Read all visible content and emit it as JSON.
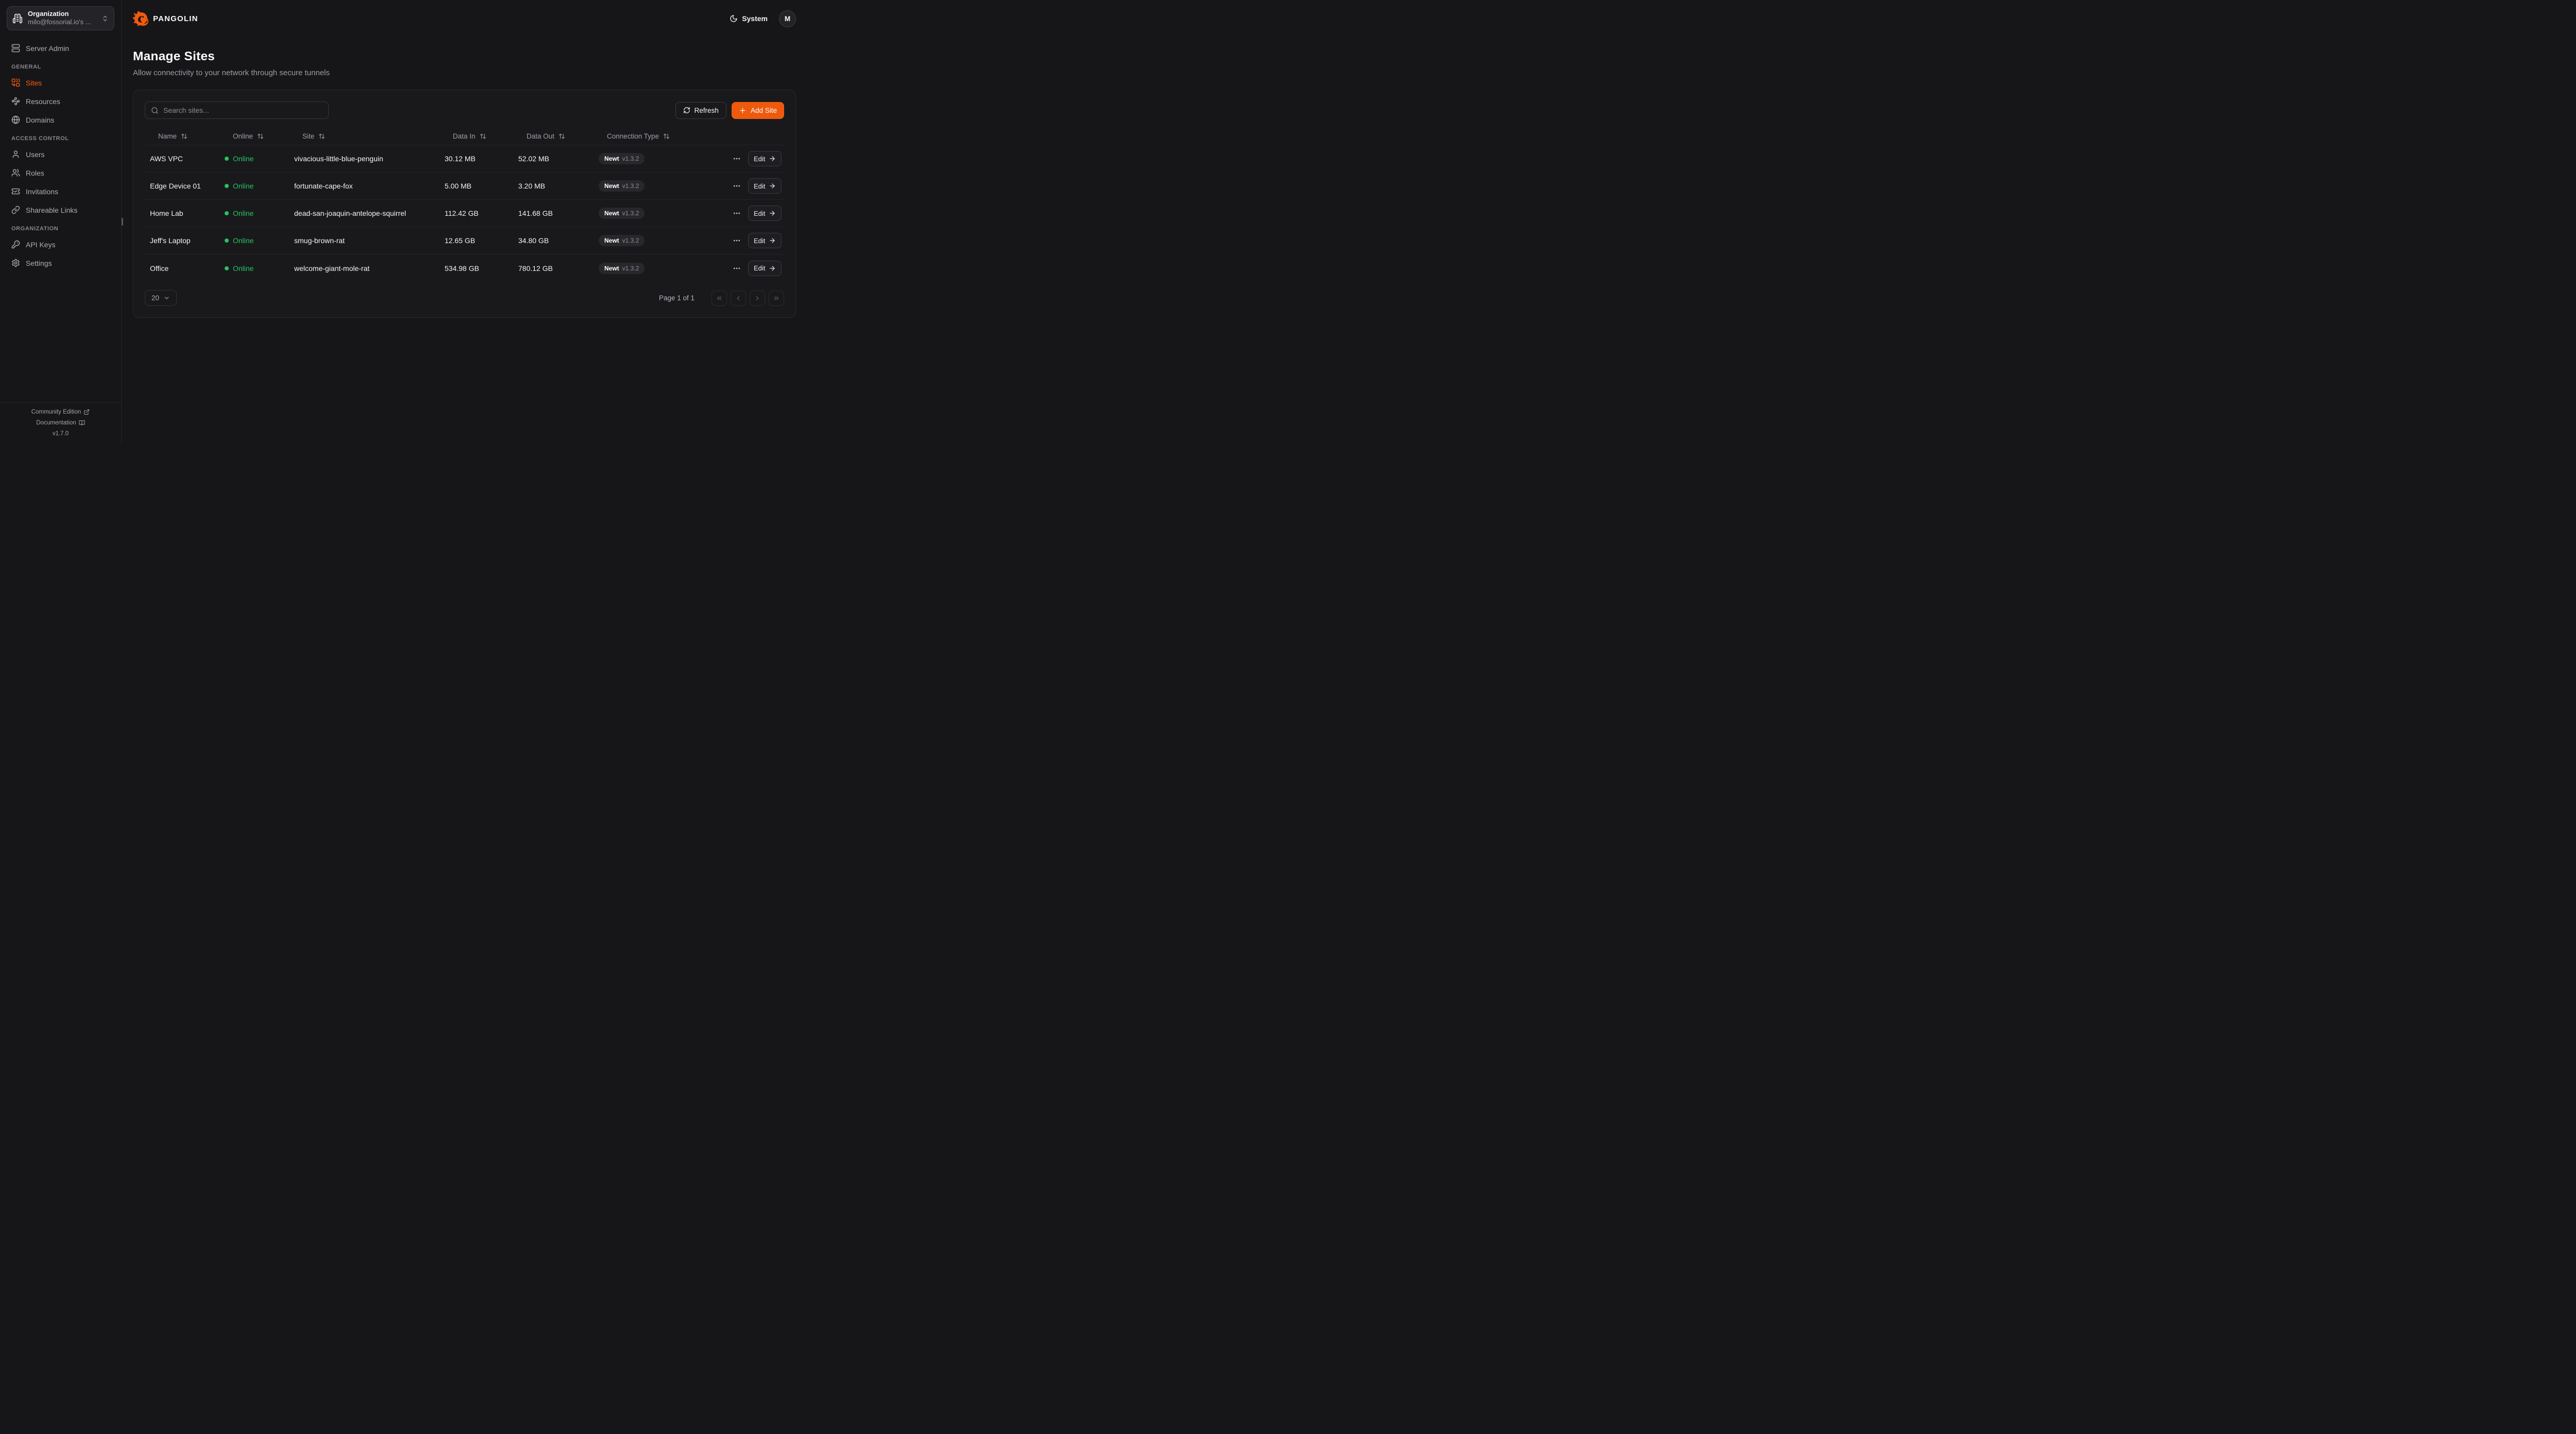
{
  "org": {
    "label": "Organization",
    "name": "milo@fossorial.io's ..."
  },
  "topbar": {
    "brand": "PANGOLIN",
    "theme": "System",
    "avatar_initial": "M"
  },
  "page": {
    "title": "Manage Sites",
    "subtitle": "Allow connectivity to your network through secure tunnels"
  },
  "sidebar": {
    "server_admin": "Server Admin",
    "sections": [
      {
        "label": "GENERAL",
        "items": [
          {
            "label": "Sites",
            "icon": "combine",
            "active": true
          },
          {
            "label": "Resources",
            "icon": "waypoints",
            "active": false
          },
          {
            "label": "Domains",
            "icon": "globe",
            "active": false
          }
        ]
      },
      {
        "label": "ACCESS CONTROL",
        "items": [
          {
            "label": "Users",
            "icon": "user",
            "active": false
          },
          {
            "label": "Roles",
            "icon": "users",
            "active": false
          },
          {
            "label": "Invitations",
            "icon": "ticket-check",
            "active": false
          },
          {
            "label": "Shareable Links",
            "icon": "link",
            "active": false
          }
        ]
      },
      {
        "label": "ORGANIZATION",
        "items": [
          {
            "label": "API Keys",
            "icon": "key",
            "active": false
          },
          {
            "label": "Settings",
            "icon": "settings",
            "active": false
          }
        ]
      }
    ],
    "footer": {
      "community_edition": "Community Edition",
      "documentation": "Documentation",
      "version": "v1.7.0"
    }
  },
  "toolbar": {
    "search_placeholder": "Search sites...",
    "refresh": "Refresh",
    "add_site": "Add Site"
  },
  "table": {
    "columns": [
      "Name",
      "Online",
      "Site",
      "Data In",
      "Data Out",
      "Connection Type"
    ],
    "rows": [
      {
        "name": "AWS VPC",
        "status": "Online",
        "site": "vivacious-little-blue-penguin",
        "data_in": "30.12 MB",
        "data_out": "52.02 MB",
        "connection_type": "Newt",
        "version": "v1.3.2",
        "edit": "Edit"
      },
      {
        "name": "Edge Device 01",
        "status": "Online",
        "site": "fortunate-cape-fox",
        "data_in": "5.00 MB",
        "data_out": "3.20 MB",
        "connection_type": "Newt",
        "version": "v1.3.2",
        "edit": "Edit"
      },
      {
        "name": "Home Lab",
        "status": "Online",
        "site": "dead-san-joaquin-antelope-squirrel",
        "data_in": "112.42 GB",
        "data_out": "141.68 GB",
        "connection_type": "Newt",
        "version": "v1.3.2",
        "edit": "Edit"
      },
      {
        "name": "Jeff's Laptop",
        "status": "Online",
        "site": "smug-brown-rat",
        "data_in": "12.65 GB",
        "data_out": "34.80 GB",
        "connection_type": "Newt",
        "version": "v1.3.2",
        "edit": "Edit"
      },
      {
        "name": "Office",
        "status": "Online",
        "site": "welcome-giant-mole-rat",
        "data_in": "534.98 GB",
        "data_out": "780.12 GB",
        "connection_type": "Newt",
        "version": "v1.3.2",
        "edit": "Edit"
      }
    ]
  },
  "pagination": {
    "page_size": "20",
    "page_info": "Page 1 of 1"
  },
  "colors": {
    "accent_orange": "#EE5A0D",
    "sites_active_orange": "#F75B0C",
    "online_green": "#23C55E",
    "background": "#161618",
    "card_background": "#19191C"
  }
}
